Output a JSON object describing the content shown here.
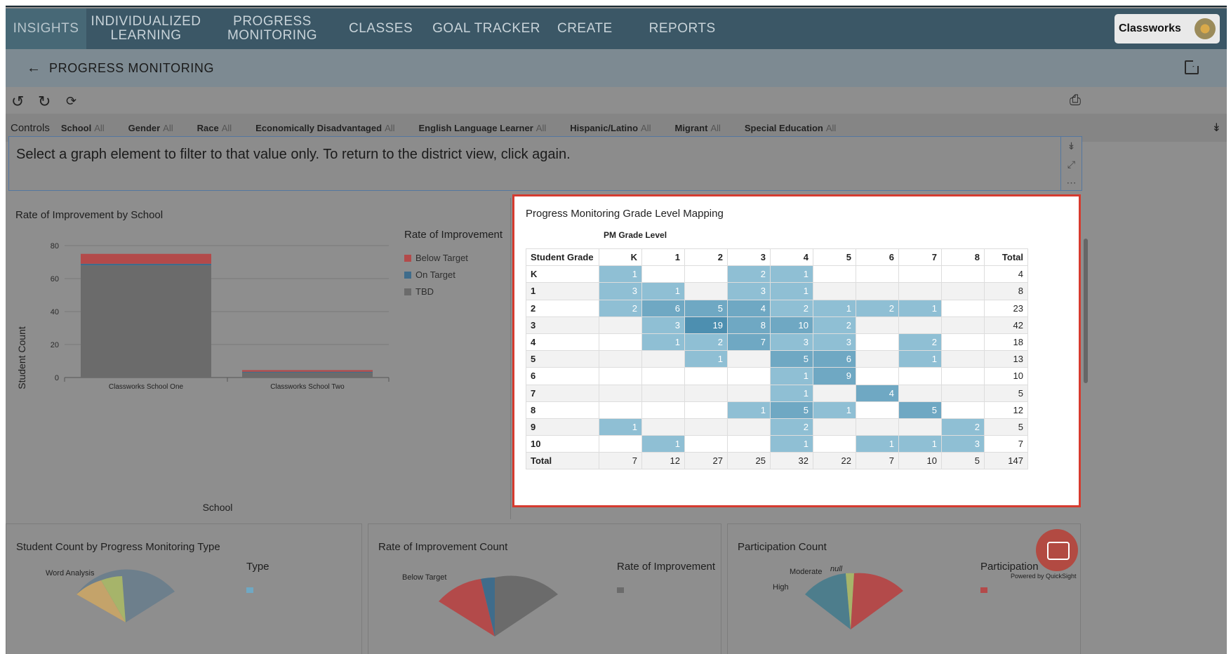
{
  "nav": {
    "items": [
      {
        "label": "INSIGHTS",
        "active": true
      },
      {
        "label": "INDIVIDUALIZED LEARNING"
      },
      {
        "label": "PROGRESS MONITORING"
      },
      {
        "label": "CLASSES"
      },
      {
        "label": "GOAL TRACKER"
      },
      {
        "label": "CREATE"
      },
      {
        "label": "REPORTS"
      }
    ],
    "brand": "Classworks"
  },
  "page": {
    "title": "PROGRESS MONITORING"
  },
  "controls": {
    "label": "Controls",
    "filters": [
      {
        "name": "School",
        "value": "All"
      },
      {
        "name": "Gender",
        "value": "All"
      },
      {
        "name": "Race",
        "value": "All"
      },
      {
        "name": "Economically Disadvantaged",
        "value": "All"
      },
      {
        "name": "English Language Learner",
        "value": "All"
      },
      {
        "name": "Hispanic/Latino",
        "value": "All"
      },
      {
        "name": "Migrant",
        "value": "All"
      },
      {
        "name": "Special Education",
        "value": "All"
      }
    ]
  },
  "message": "Select a graph element to filter to that value only. To return to the district view, click again.",
  "left_chart": {
    "title": "Rate of Improvement by School",
    "legend_title": "Rate of Improvement",
    "legend": [
      {
        "label": "Below Target",
        "color": "#b34a4a"
      },
      {
        "label": "On Target",
        "color": "#3f6c8b"
      },
      {
        "label": "TBD",
        "color": "#6b6b6b"
      }
    ]
  },
  "chart_data": {
    "type": "bar",
    "stacked": true,
    "title": "Rate of Improvement by School",
    "xlabel": "School",
    "ylabel": "Student Count",
    "ylim": [
      0,
      80
    ],
    "yticks": [
      0,
      20,
      40,
      60,
      80
    ],
    "categories": [
      "Classworks School One",
      "Classworks School Two"
    ],
    "series": [
      {
        "name": "TBD",
        "values": [
          68,
          3
        ]
      },
      {
        "name": "On Target",
        "values": [
          1,
          0.5
        ]
      },
      {
        "name": "Below Target",
        "values": [
          6,
          1
        ]
      }
    ]
  },
  "mapping": {
    "title": "Progress Monitoring Grade Level Mapping",
    "subtitle": "PM Grade Level",
    "row_header": "Student Grade",
    "columns": [
      "K",
      "1",
      "2",
      "3",
      "4",
      "5",
      "6",
      "7",
      "8",
      "Total"
    ],
    "rows": [
      {
        "label": "K",
        "cells": [
          "1",
          "",
          "",
          "2",
          "1",
          "",
          "",
          "",
          "",
          "4"
        ]
      },
      {
        "label": "1",
        "cells": [
          "3",
          "1",
          "",
          "3",
          "1",
          "",
          "",
          "",
          "",
          "8"
        ]
      },
      {
        "label": "2",
        "cells": [
          "2",
          "6",
          "5",
          "4",
          "2",
          "1",
          "2",
          "1",
          "",
          "23"
        ]
      },
      {
        "label": "3",
        "cells": [
          "",
          "3",
          "19",
          "8",
          "10",
          "2",
          "",
          "",
          "",
          "42"
        ]
      },
      {
        "label": "4",
        "cells": [
          "",
          "1",
          "2",
          "7",
          "3",
          "3",
          "",
          "2",
          "",
          "18"
        ]
      },
      {
        "label": "5",
        "cells": [
          "",
          "",
          "1",
          "",
          "5",
          "6",
          "",
          "1",
          "",
          "13"
        ]
      },
      {
        "label": "6",
        "cells": [
          "",
          "",
          "",
          "",
          "1",
          "9",
          "",
          "",
          "",
          "10"
        ]
      },
      {
        "label": "7",
        "cells": [
          "",
          "",
          "",
          "",
          "1",
          "",
          "4",
          "",
          "",
          "5"
        ]
      },
      {
        "label": "8",
        "cells": [
          "",
          "",
          "",
          "1",
          "5",
          "1",
          "",
          "5",
          "",
          "12"
        ]
      },
      {
        "label": "9",
        "cells": [
          "1",
          "",
          "",
          "",
          "2",
          "",
          "",
          "",
          "2",
          "5"
        ]
      },
      {
        "label": "10",
        "cells": [
          "",
          "1",
          "",
          "",
          "1",
          "",
          "1",
          "1",
          "3",
          "7"
        ]
      },
      {
        "label": "Total",
        "cells": [
          "7",
          "12",
          "27",
          "25",
          "32",
          "22",
          "7",
          "10",
          "5",
          "147"
        ]
      }
    ]
  },
  "bottom": {
    "p1": {
      "title": "Student Count by Progress Monitoring Type",
      "legend_title": "Type",
      "slice_label": "Word Analysis"
    },
    "p2": {
      "title": "Rate of Improvement Count",
      "legend_title": "Rate of Improvement",
      "slice_label": "Below Target"
    },
    "p3": {
      "title": "Participation Count",
      "legend_title": "Participation",
      "slice_labels": [
        "Moderate",
        "null",
        "High"
      ]
    },
    "powered": "Powered by QuickSight"
  }
}
